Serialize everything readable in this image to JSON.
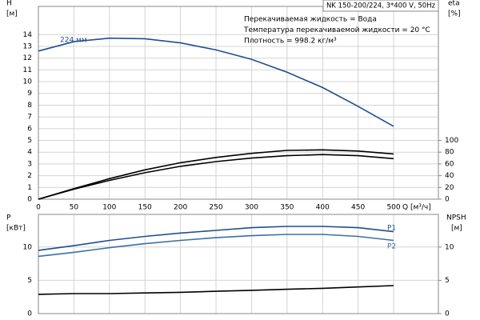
{
  "chart_data": [
    {
      "type": "line",
      "title": "NK 150-200/224, 3*400 V, 50Hz",
      "annotations": [
        "Перекачиваемая жидкость = Вода",
        "Температура перекачиваемой жидкости = 20 °C",
        "Плотность = 998.2 кг/м³"
      ],
      "ylabel": "H",
      "yunit": "[м]",
      "y2label": "eta",
      "y2unit": "[%]",
      "xlabel": "Q [м³/ч]",
      "xlim": [
        0,
        563
      ],
      "xticks": [
        0,
        50,
        100,
        150,
        200,
        250,
        300,
        350,
        400,
        450,
        500
      ],
      "xtick_labels": true,
      "ylim": [
        0,
        16.4
      ],
      "yticks": [
        0,
        1,
        2,
        3,
        4,
        5,
        6,
        7,
        8,
        9,
        10,
        11,
        12,
        13,
        14
      ],
      "y2lim": [
        0,
        328
      ],
      "y2ticks": [
        0,
        20,
        40,
        60,
        80,
        100
      ],
      "grid": true,
      "x": [
        0,
        50,
        100,
        150,
        200,
        250,
        300,
        350,
        400,
        450,
        500
      ],
      "series": [
        {
          "name": "224 мм",
          "color": "#1f4e8c",
          "axis": "y",
          "values": [
            12.6,
            13.4,
            13.7,
            13.65,
            13.3,
            12.7,
            11.9,
            10.8,
            9.5,
            7.9,
            6.2
          ]
        },
        {
          "color": "#000000",
          "axis": "y2",
          "values": [
            0,
            18,
            35,
            50,
            62,
            71,
            78,
            83,
            84,
            82,
            77
          ]
        },
        {
          "color": "#000000",
          "axis": "y2",
          "values": [
            0,
            17,
            32,
            45,
            56,
            64,
            70,
            74,
            76,
            74,
            69
          ]
        }
      ]
    },
    {
      "type": "line",
      "ylabel": "P",
      "yunit": "[кВт]",
      "y2label": "NPSH",
      "y2unit": "[м]",
      "xlim": [
        0,
        563
      ],
      "xticks": [
        0,
        50,
        100,
        150,
        200,
        250,
        300,
        350,
        400,
        450,
        500
      ],
      "xtick_labels": false,
      "ylim": [
        0,
        14.9
      ],
      "yticks": [
        0,
        5,
        10
      ],
      "y2lim": [
        0,
        14.9
      ],
      "y2ticks": [
        0,
        5,
        10
      ],
      "grid": true,
      "x": [
        0,
        50,
        100,
        150,
        200,
        250,
        300,
        350,
        400,
        450,
        500
      ],
      "series": [
        {
          "name": "P1",
          "color": "#1f4e8c",
          "axis": "y",
          "values": [
            9.5,
            10.2,
            11.0,
            11.6,
            12.1,
            12.5,
            12.9,
            13.1,
            13.1,
            12.9,
            12.3
          ]
        },
        {
          "name": "P2",
          "color": "#3b6ea8",
          "axis": "y",
          "values": [
            8.6,
            9.2,
            9.9,
            10.5,
            11.0,
            11.4,
            11.7,
            11.9,
            11.9,
            11.6,
            11.0
          ]
        },
        {
          "color": "#000000",
          "axis": "y2",
          "values": [
            2.9,
            3.0,
            3.0,
            3.1,
            3.2,
            3.35,
            3.5,
            3.65,
            3.8,
            4.0,
            4.2
          ]
        }
      ]
    }
  ]
}
